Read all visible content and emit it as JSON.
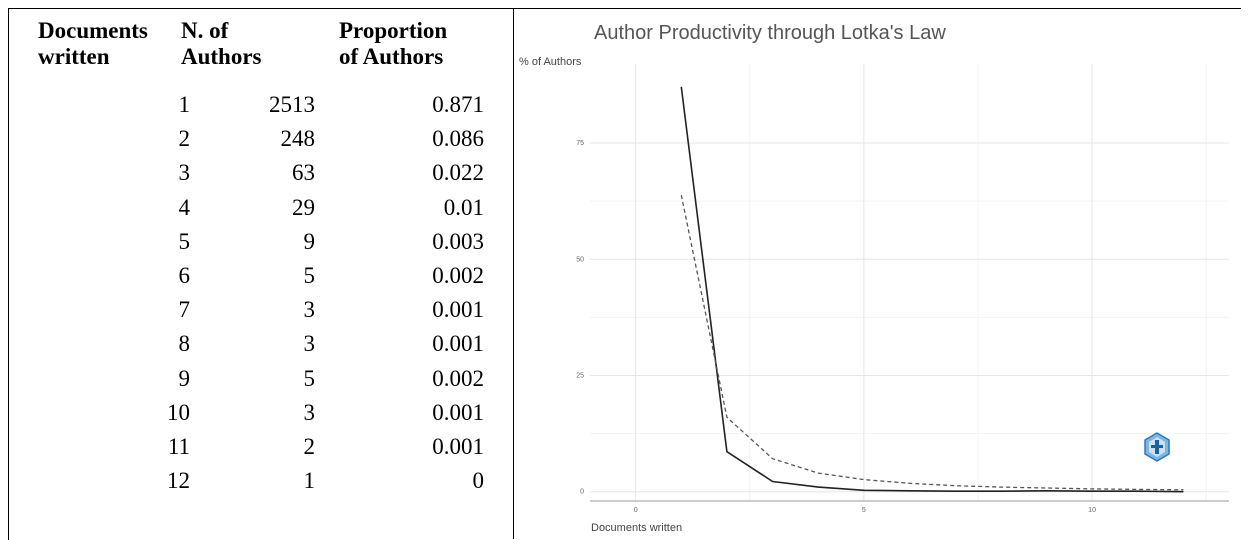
{
  "table": {
    "headers": {
      "col1": [
        "Documents",
        "written"
      ],
      "col2": [
        "N. of",
        "Authors"
      ],
      "col3": [
        "Proportion",
        "of Authors"
      ]
    },
    "rows": [
      {
        "docs": "1",
        "authors": "2513",
        "proportion": "0.871"
      },
      {
        "docs": "2",
        "authors": "248",
        "proportion": "0.086"
      },
      {
        "docs": "3",
        "authors": "63",
        "proportion": "0.022"
      },
      {
        "docs": "4",
        "authors": "29",
        "proportion": "0.01"
      },
      {
        "docs": "5",
        "authors": "9",
        "proportion": "0.003"
      },
      {
        "docs": "6",
        "authors": "5",
        "proportion": "0.002"
      },
      {
        "docs": "7",
        "authors": "3",
        "proportion": "0.001"
      },
      {
        "docs": "8",
        "authors": "3",
        "proportion": "0.001"
      },
      {
        "docs": "9",
        "authors": "5",
        "proportion": "0.002"
      },
      {
        "docs": "10",
        "authors": "3",
        "proportion": "0.001"
      },
      {
        "docs": "11",
        "authors": "2",
        "proportion": "0.001"
      },
      {
        "docs": "12",
        "authors": "1",
        "proportion": "0"
      }
    ]
  },
  "chart_data": {
    "type": "line",
    "title": "Author Productivity through Lotka's Law",
    "xlabel": "Documents written",
    "ylabel": "% of Authors",
    "xlim": [
      -1,
      13
    ],
    "ylim": [
      -2,
      92
    ],
    "x_ticks": [
      "0",
      "5",
      "10"
    ],
    "y_ticks": [
      "0",
      "25",
      "50",
      "75"
    ],
    "grid": true,
    "legend": "none",
    "series": [
      {
        "style": "solid",
        "x": [
          1,
          2,
          3,
          4,
          5,
          6,
          7,
          8,
          9,
          10,
          11,
          12
        ],
        "y": [
          87.1,
          8.6,
          2.2,
          1.0,
          0.3,
          0.2,
          0.1,
          0.1,
          0.2,
          0.1,
          0.1,
          0.0
        ]
      },
      {
        "style": "dashed",
        "x": [
          1,
          2,
          3,
          4,
          5,
          6,
          7,
          8,
          9,
          10,
          11,
          12
        ],
        "y": [
          63.8,
          16.0,
          7.1,
          4.0,
          2.6,
          1.8,
          1.3,
          1.0,
          0.8,
          0.6,
          0.5,
          0.4
        ]
      }
    ]
  }
}
